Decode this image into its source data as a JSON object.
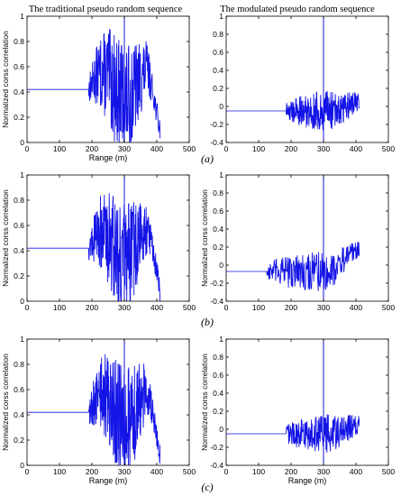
{
  "column_titles": [
    "The traditional pseudo random sequence",
    "The modulated pseudo random sequence"
  ],
  "row_labels": [
    "(a)",
    "(b)",
    "(c)"
  ],
  "colors": {
    "series": "#1414e6",
    "axis": "#000000"
  },
  "chart_data": [
    {
      "id": "a-left",
      "type": "line",
      "xlabel": "Range (m)",
      "ylabel": "Normalized corss correlation",
      "xlim": [
        0,
        500
      ],
      "ylim": [
        0,
        1
      ],
      "xticks": [
        "0",
        "100",
        "200",
        "300",
        "400",
        "500"
      ],
      "yticks": [
        "0",
        "0.2",
        "0.4",
        "0.6",
        "0.8",
        "1"
      ],
      "baseline": 0.42,
      "noise_start": 190,
      "noise_end": 410,
      "peak_x": 300,
      "peak_y": 1.0,
      "end_y": 0.0,
      "envelope": "trad"
    },
    {
      "id": "a-right",
      "type": "line",
      "xlabel": "",
      "ylabel": "",
      "xlim": [
        0,
        500
      ],
      "ylim": [
        -0.4,
        1
      ],
      "xticks": [
        "0",
        "100",
        "200",
        "300",
        "400",
        "500"
      ],
      "yticks": [
        "-0.4",
        "-0.2",
        "0",
        "0.2",
        "0.4",
        "0.6",
        "0.8",
        "1"
      ],
      "baseline": -0.05,
      "noise_start": 185,
      "noise_end": 410,
      "peak_x": 300,
      "peak_y": 1.0,
      "end_y": 0.05,
      "envelope": "mod"
    },
    {
      "id": "b-left",
      "type": "line",
      "xlabel": "",
      "ylabel": "Normalized corss correlation",
      "xlim": [
        0,
        500
      ],
      "ylim": [
        0,
        1
      ],
      "xticks": [
        "0",
        "100",
        "200",
        "300",
        "400",
        "500"
      ],
      "yticks": [
        "0",
        "0.2",
        "0.4",
        "0.6",
        "0.8",
        "1"
      ],
      "baseline": 0.42,
      "noise_start": 190,
      "noise_end": 410,
      "peak_x": 300,
      "peak_y": 1.0,
      "end_y": 0.0,
      "envelope": "trad"
    },
    {
      "id": "b-right",
      "type": "line",
      "xlabel": "",
      "ylabel": "Normalized corss correlation",
      "xlim": [
        0,
        500
      ],
      "ylim": [
        -0.4,
        1
      ],
      "xticks": [
        "0",
        "100",
        "200",
        "300",
        "400",
        "500"
      ],
      "yticks": [
        "-0.4",
        "-0.2",
        "0",
        "0.2",
        "0.4",
        "0.6",
        "0.8",
        "1"
      ],
      "baseline": -0.07,
      "noise_start": 125,
      "noise_end": 410,
      "peak_x": 300,
      "peak_y": 1.0,
      "end_y": 0.2,
      "envelope": "mod"
    },
    {
      "id": "c-left",
      "type": "line",
      "xlabel": "Range (m)",
      "ylabel": "Normalized corss correlation",
      "xlim": [
        0,
        500
      ],
      "ylim": [
        0,
        1
      ],
      "xticks": [
        "0",
        "100",
        "200",
        "300",
        "400",
        "500"
      ],
      "yticks": [
        "0",
        "0.2",
        "0.4",
        "0.6",
        "0.8",
        "1"
      ],
      "baseline": 0.42,
      "noise_start": 190,
      "noise_end": 410,
      "peak_x": 300,
      "peak_y": 1.0,
      "end_y": 0.0,
      "envelope": "trad"
    },
    {
      "id": "c-right",
      "type": "line",
      "xlabel": "Range (m)",
      "ylabel": "Normalized corss correlation",
      "xlim": [
        0,
        500
      ],
      "ylim": [
        -0.4,
        1
      ],
      "xticks": [
        "0",
        "100",
        "200",
        "300",
        "400",
        "500"
      ],
      "yticks": [
        "-0.4",
        "-0.2",
        "0",
        "0.2",
        "0.4",
        "0.6",
        "0.8",
        "1"
      ],
      "baseline": -0.05,
      "noise_start": 185,
      "noise_end": 410,
      "peak_x": 300,
      "peak_y": 1.0,
      "end_y": 0.05,
      "envelope": "mod"
    }
  ]
}
